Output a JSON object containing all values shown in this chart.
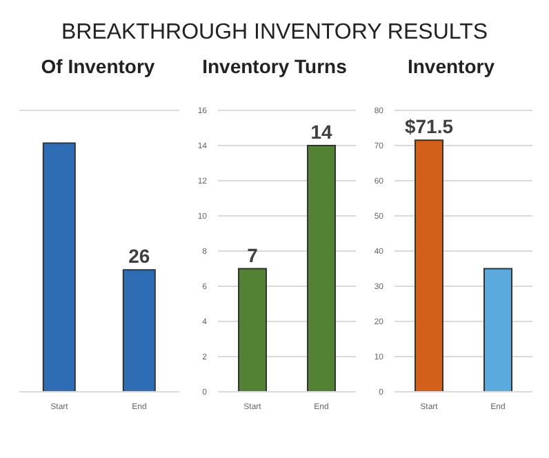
{
  "chart_data": [
    {
      "type": "bar",
      "title": "BREAKTHROUGH INVENTORY RESULTS",
      "subtitle": "Of Inventory",
      "categories": [
        "Start",
        "End"
      ],
      "values": [
        53,
        26
      ],
      "color": "#2e6db4",
      "value_labels": [
        null,
        "26"
      ],
      "ylim": [
        0,
        60
      ],
      "grid": "y",
      "tick_labels": "x"
    },
    {
      "type": "bar",
      "subtitle": "Inventory Turns",
      "categories": [
        "Start",
        "End"
      ],
      "values": [
        7,
        14
      ],
      "color": "#548235",
      "data_labels": true,
      "ylim": [
        0,
        16
      ],
      "yticks": [
        0,
        2,
        4,
        6,
        8,
        10,
        12,
        14,
        16
      ],
      "grid": "y"
    },
    {
      "type": "bar",
      "subtitle": "Inventory",
      "categories": [
        "Start",
        "End"
      ],
      "values": [
        71.5,
        35
      ],
      "colors": [
        "#d2601a",
        "#5aaade"
      ],
      "value_labels": [
        "$71.5",
        null
      ],
      "ylim": [
        0,
        80
      ],
      "yticks": [
        0,
        10,
        20,
        30,
        40,
        50,
        60,
        70,
        80
      ],
      "grid": "y"
    }
  ]
}
